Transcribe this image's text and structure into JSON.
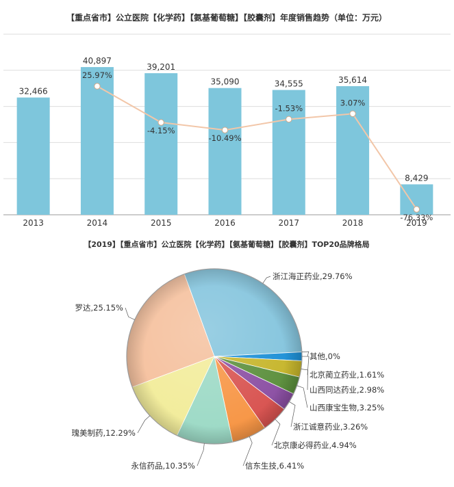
{
  "chart_data": [
    {
      "type": "bar",
      "title": "【重点省市】公立医院【化学药】【氨基葡萄糖】【胶囊剂】年度销售趋势（单位：万元）",
      "categories": [
        "2013",
        "2014",
        "2015",
        "2016",
        "2017",
        "2018",
        "2019"
      ],
      "series": [
        {
          "values": [
            32466,
            40897,
            39201,
            35090,
            34555,
            35614,
            8429
          ]
        },
        {
          "type": "line",
          "values": [
            null,
            25.97,
            -4.15,
            -10.49,
            -1.53,
            3.07,
            -76.33
          ]
        }
      ],
      "value_labels": [
        "32,466",
        "40,897",
        "39,201",
        "35,090",
        "34,555",
        "35,614",
        "8,429"
      ],
      "growth_labels": [
        "",
        "25.97%",
        "-4.15%",
        "-10.49%",
        "-1.53%",
        "3.07%",
        "-76.33%"
      ],
      "ylim": [
        0,
        50000
      ],
      "grid": true,
      "colors": {
        "bar": "#7ec6dc",
        "line": "#f2c6a8",
        "marker": "#ffffff",
        "grid": "#dddddd"
      }
    },
    {
      "type": "pie",
      "title": "【2019】【重点省市】公立医院【化学药】【氨基葡萄糖】【胶囊剂】TOP20品牌格局",
      "slices": [
        {
          "label": "浙江海正药业",
          "value": 29.76,
          "text": "浙江海正药业,29.76%",
          "color": "#83c4dd"
        },
        {
          "label": "其他",
          "value": 0.0,
          "text": "其他,0%",
          "color": "#a0a0a0"
        },
        {
          "label": "北京蔺立药业",
          "value": 1.61,
          "text": "北京蔺立药业,1.61%",
          "color": "#1b8fd6"
        },
        {
          "label": "山西同达药业",
          "value": 2.98,
          "text": "山西同达药业,2.98%",
          "color": "#c6b52a"
        },
        {
          "label": "山西康宝生物",
          "value": 3.25,
          "text": "山西康宝生物,3.25%",
          "color": "#5b8f3c"
        },
        {
          "label": "浙江诚意药业",
          "value": 3.26,
          "text": "浙江诚意药业,3.26%",
          "color": "#8b4fa3"
        },
        {
          "label": "北京康必得药业",
          "value": 4.94,
          "text": "北京康必得药业,4.94%",
          "color": "#d85350"
        },
        {
          "label": "信东生技",
          "value": 6.41,
          "text": "信东生技,6.41%",
          "color": "#f79646"
        },
        {
          "label": "永信药品",
          "value": 10.35,
          "text": "永信药品,10.35%",
          "color": "#9ddac6"
        },
        {
          "label": "瑰美制药",
          "value": 12.29,
          "text": "瑰美制药,12.29%",
          "color": "#f2ec9a"
        },
        {
          "label": "罗达",
          "value": 25.15,
          "text": "罗达,25.15%",
          "color": "#f5c09d"
        }
      ]
    }
  ]
}
